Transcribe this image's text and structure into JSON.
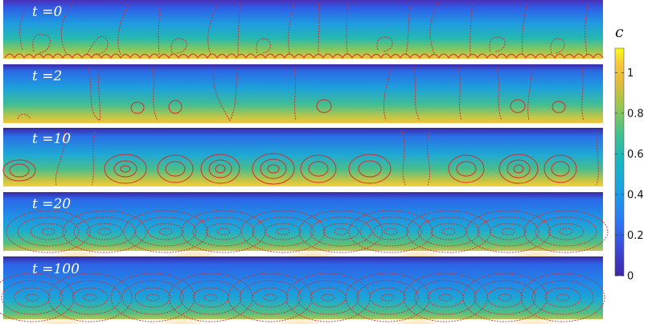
{
  "panels": [
    {
      "label": "t =0"
    },
    {
      "label": "t =2"
    },
    {
      "label": "t =10"
    },
    {
      "label": "t =20"
    },
    {
      "label": "t =100"
    }
  ],
  "colorbar": {
    "title": "c",
    "ticks": [
      "1",
      "0.8",
      "0.6",
      "0.4",
      "0.2",
      "0"
    ],
    "tick_values": [
      1,
      0.8,
      0.6,
      0.4,
      0.2,
      0
    ],
    "range": [
      0,
      1.12
    ],
    "colormap": "parula"
  },
  "colors": {
    "colormap_stops": [
      "#3e26a8",
      "#2b7cf4",
      "#19b5d0",
      "#5fc86b",
      "#f3c038",
      "#f9fb15"
    ],
    "streamline": "#d62b2b",
    "label_text": "#ffffff"
  }
}
